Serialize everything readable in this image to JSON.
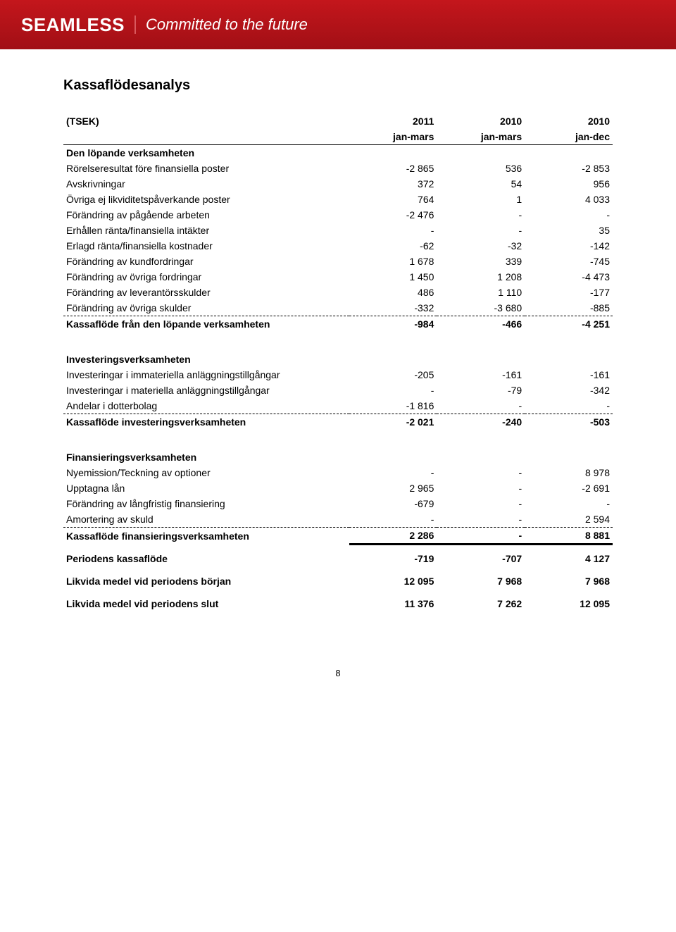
{
  "header": {
    "logo_text": "SEAMLESS",
    "tagline": "Committed to the future"
  },
  "title": "Kassaflödesanalys",
  "columns": {
    "label": "(TSEK)",
    "years": [
      "2011",
      "2010",
      "2010"
    ],
    "periods": [
      "jan-mars",
      "jan-mars",
      "jan-dec"
    ]
  },
  "op": {
    "heading": "Den löpande verksamheten",
    "rows": [
      {
        "label": "Rörelseresultat före finansiella poster",
        "v": [
          "-2 865",
          "536",
          "-2 853"
        ]
      },
      {
        "label": "Avskrivningar",
        "v": [
          "372",
          "54",
          "956"
        ]
      },
      {
        "label": "Övriga ej likviditetspåverkande poster",
        "v": [
          "764",
          "1",
          "4 033"
        ]
      },
      {
        "label": "Förändring av pågående arbeten",
        "v": [
          "-2 476",
          "-",
          "-"
        ]
      },
      {
        "label": "Erhållen ränta/finansiella intäkter",
        "v": [
          "-",
          "-",
          "35"
        ]
      },
      {
        "label": "Erlagd ränta/finansiella kostnader",
        "v": [
          "-62",
          "-32",
          "-142"
        ]
      },
      {
        "label": "Förändring av kundfordringar",
        "v": [
          "1 678",
          "339",
          "-745"
        ]
      },
      {
        "label": "Förändring av övriga fordringar",
        "v": [
          "1 450",
          "1 208",
          "-4 473"
        ]
      },
      {
        "label": "Förändring av leverantörsskulder",
        "v": [
          "486",
          "1 110",
          "-177"
        ]
      },
      {
        "label": "Förändring av övriga skulder",
        "v": [
          "-332",
          "-3 680",
          "-885"
        ]
      }
    ],
    "subtotal": {
      "label": "Kassaflöde från den löpande verksamheten",
      "v": [
        "-984",
        "-466",
        "-4 251"
      ]
    }
  },
  "inv": {
    "heading": "Investeringsverksamheten",
    "rows": [
      {
        "label": "Investeringar i immateriella anläggningstillgångar",
        "v": [
          "-205",
          "-161",
          "-161"
        ]
      },
      {
        "label": "Investeringar i materiella anläggningstillgångar",
        "v": [
          "-",
          "-79",
          "-342"
        ]
      },
      {
        "label": "Andelar i dotterbolag",
        "v": [
          "-1 816",
          "-",
          "-"
        ]
      }
    ],
    "subtotal": {
      "label": "Kassaflöde investeringsverksamheten",
      "v": [
        "-2 021",
        "-240",
        "-503"
      ]
    }
  },
  "fin": {
    "heading": "Finansieringsverksamheten",
    "rows": [
      {
        "label": "Nyemission/Teckning av optioner",
        "v": [
          "-",
          "-",
          "8 978"
        ]
      },
      {
        "label": "Upptagna lån",
        "v": [
          "2 965",
          "-",
          "-2 691"
        ]
      },
      {
        "label": "Förändring av långfristig finansiering",
        "v": [
          "-679",
          "-",
          "-"
        ]
      },
      {
        "label": "Amortering av skuld",
        "v": [
          "-",
          "-",
          "2 594"
        ]
      }
    ],
    "subtotal": {
      "label": "Kassaflöde finansieringsverksamheten",
      "v": [
        "2 286",
        "-",
        "8 881"
      ]
    }
  },
  "footer_rows": [
    {
      "label": "Periodens kassaflöde",
      "v": [
        "-719",
        "-707",
        "4 127"
      ]
    },
    {
      "label": "Likvida medel vid periodens början",
      "v": [
        "12 095",
        "7 968",
        "7 968"
      ]
    },
    {
      "label": "Likvida medel vid periodens slut",
      "v": [
        "11 376",
        "7 262",
        "12 095"
      ]
    }
  ],
  "page_number": "8"
}
